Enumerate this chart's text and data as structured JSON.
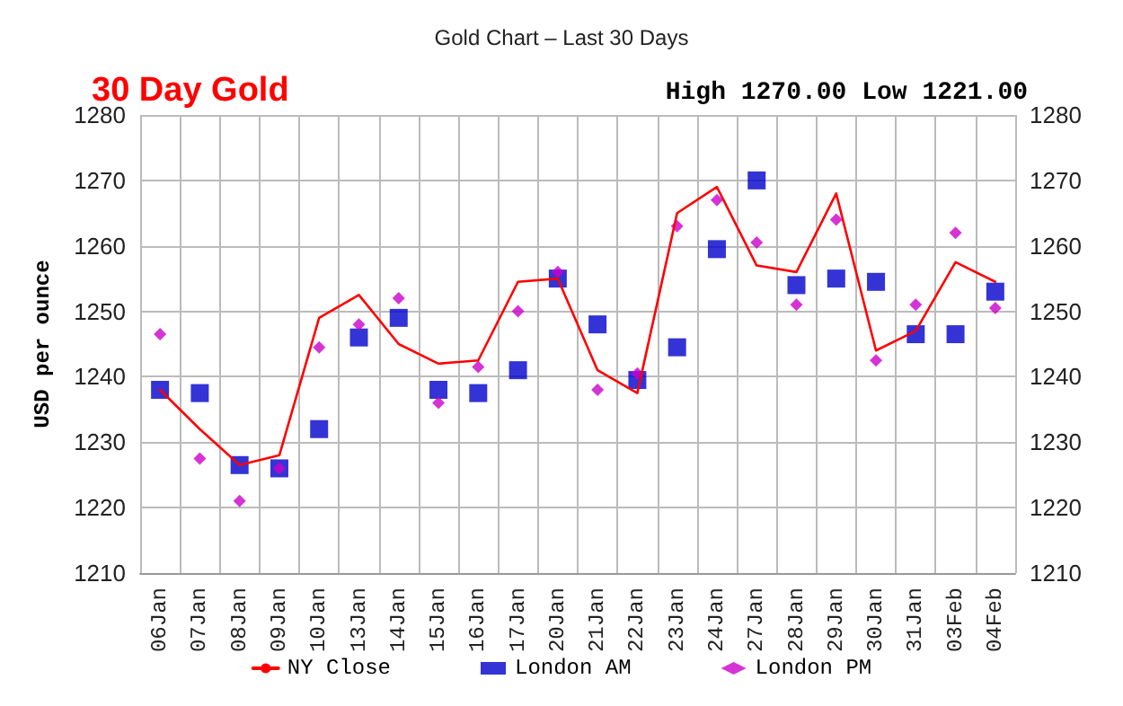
{
  "chart_data": {
    "type": "line",
    "title": "30 Day Gold",
    "subtitle": "Gold Chart – Last 30 Days",
    "ylabel": "USD per ounce",
    "annotations": [
      "High 1270.00 Low 1221.00"
    ],
    "categories": [
      "06Jan",
      "07Jan",
      "08Jan",
      "09Jan",
      "10Jan",
      "13Jan",
      "14Jan",
      "15Jan",
      "16Jan",
      "17Jan",
      "20Jan",
      "21Jan",
      "22Jan",
      "23Jan",
      "24Jan",
      "27Jan",
      "28Jan",
      "29Jan",
      "30Jan",
      "31Jan",
      "03Feb",
      "04Feb"
    ],
    "series": [
      {
        "name": "NY Close",
        "color": "#ff0000",
        "marker": "none",
        "values": [
          1238,
          1232,
          1226.5,
          1228,
          1249,
          1252.5,
          1245,
          1242,
          1242.5,
          1254.5,
          1255,
          1241,
          1237.5,
          1265,
          1269,
          1257,
          1256,
          1268,
          1244,
          1247,
          1257.5,
          1254.5
        ]
      },
      {
        "name": "London AM",
        "type": "scatter",
        "color": "#0000cc",
        "marker": "square",
        "values": [
          1238,
          1237.5,
          1226.5,
          1226,
          1232,
          1246,
          1249,
          1238,
          1237.5,
          1241,
          1255,
          1248,
          1239.5,
          1244.5,
          1259.5,
          1270,
          1254,
          1255,
          1254.5,
          1246.5,
          1246.5,
          1253
        ]
      },
      {
        "name": "London PM",
        "type": "scatter",
        "color": "#cc00cc",
        "marker": "diamond",
        "values": [
          1246.5,
          1227.5,
          1221,
          1226,
          1244.5,
          1248,
          1252,
          1236,
          1241.5,
          1250,
          1256,
          1238,
          1240.5,
          1263,
          1267,
          1260.5,
          1251,
          1264,
          1242.5,
          1251,
          1262,
          1250.5
        ]
      }
    ],
    "ylim": [
      1210,
      1280
    ],
    "yticks": [
      1210,
      1220,
      1230,
      1240,
      1250,
      1260,
      1270,
      1280
    ],
    "y2lim": [
      1210,
      1280
    ],
    "y2ticks": [
      1210,
      1220,
      1230,
      1240,
      1250,
      1260,
      1270,
      1280
    ],
    "grid": true,
    "legend": "bottom",
    "line_style": "solid"
  }
}
